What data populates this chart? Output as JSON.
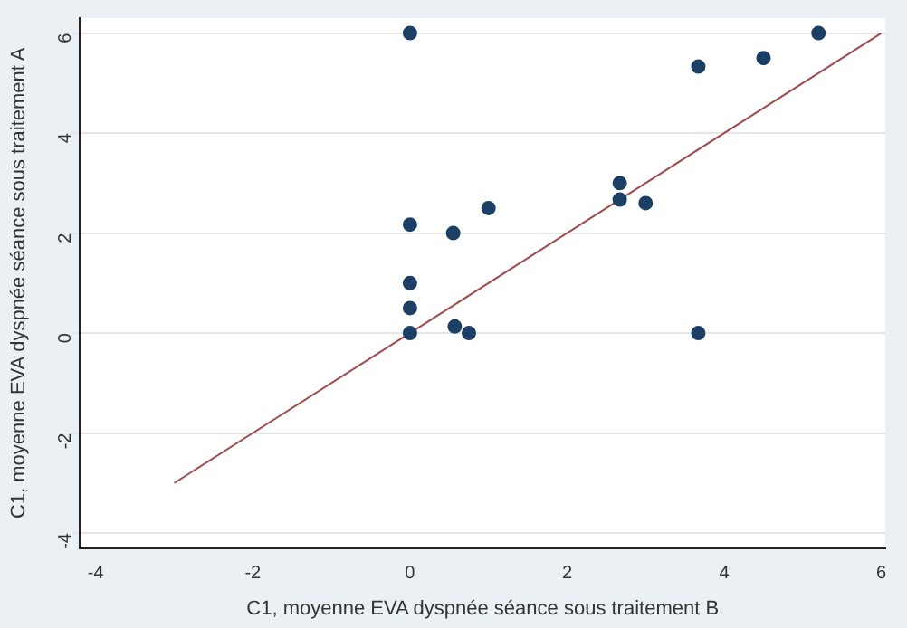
{
  "chart_data": {
    "type": "scatter",
    "xlabel": "C1, moyenne EVA dyspnée séance sous traitement B",
    "ylabel": "C1, moyenne EVA dyspnée séance sous traitement A",
    "series": [
      {
        "type": "scatter",
        "marker": "circle",
        "color": "#1c3f66",
        "x": [
          0,
          3.67,
          4.5,
          5.2,
          2.67,
          2.67,
          3,
          1,
          0,
          0.55,
          0,
          0,
          0,
          0.57,
          0.75,
          3.67
        ],
        "values": [
          6,
          5.33,
          5.5,
          6,
          3,
          2.67,
          2.6,
          2.5,
          2.17,
          2,
          1,
          0.5,
          0,
          0.13,
          0,
          0
        ]
      },
      {
        "type": "line",
        "marker": "none",
        "color": "#a04b4b",
        "x": [
          -3,
          6
        ],
        "values": [
          -3,
          6
        ]
      }
    ],
    "xlim": [
      -4.2,
      6.05
    ],
    "xticks": [
      -4,
      -2,
      0,
      2,
      4,
      6
    ],
    "ylim": [
      -4.3,
      6.3
    ],
    "yticks": [
      -4,
      -2,
      0,
      2,
      4,
      6
    ],
    "grid": "y",
    "legend": false
  }
}
